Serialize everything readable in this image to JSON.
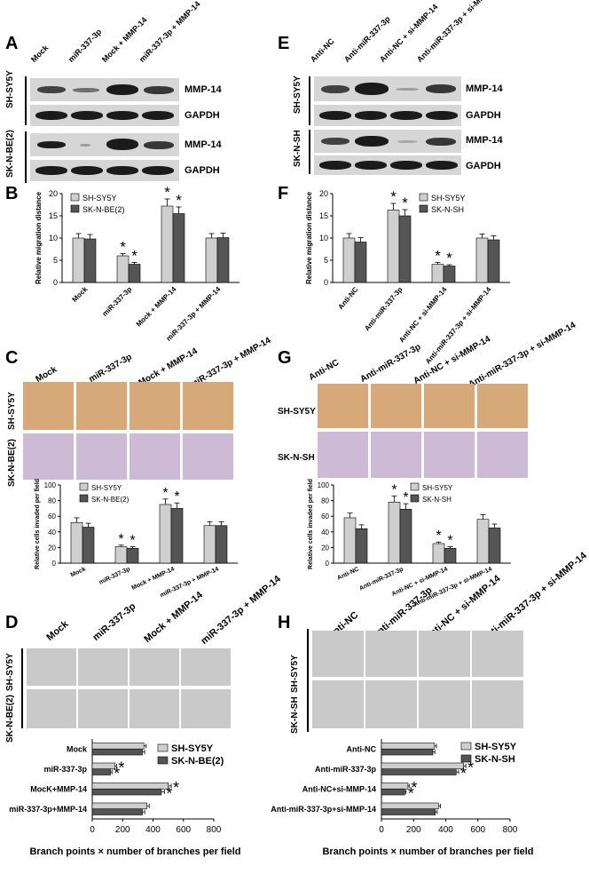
{
  "panel_letters": [
    "A",
    "B",
    "C",
    "D",
    "E",
    "F",
    "G",
    "H"
  ],
  "left": {
    "conditions": [
      "Mock",
      "miR-337-3p",
      "Mock + MMP-14",
      "miR-337-3p + MMP-14"
    ],
    "cell_lines": [
      "SH-SY5Y",
      "SK-N-BE(2)"
    ],
    "blot_labels": [
      "MMP-14",
      "GAPDH",
      "MMP-14",
      "GAPDH"
    ],
    "legend": [
      "SH-SY5Y",
      "SK-N-BE(2)"
    ],
    "d_rows": [
      "Mock",
      "miR-337-3p",
      "MocK+MMP-14",
      "miR-337-3p+MMP-14"
    ]
  },
  "right": {
    "conditions": [
      "Anti-NC",
      "Anti-miR-337-3p",
      "Anti-NC + si-MMP-14",
      "Anti-miR-337-3p + si-MMP-14"
    ],
    "cell_lines": [
      "SH-SY5Y",
      "SK-N-SH"
    ],
    "blot_labels": [
      "MMP-14",
      "GAPDH",
      "MMP-14",
      "GAPDH"
    ],
    "legend": [
      "SH-SY5Y",
      "SK-N-SH"
    ],
    "h_rows": [
      "Anti-NC",
      "Anti-miR-337-3p",
      "Anti-NC+si-MMP-14",
      "Anti-miR-337-3p+si-MMP-14"
    ]
  },
  "axes": {
    "migration": "Relative migration distance",
    "invasion": "Relative cells invaded per field",
    "branch": "Branch points × number of branches per field"
  },
  "chart_data": [
    {
      "panel": "B",
      "type": "bar",
      "ylabel": "Relative migration distance",
      "ylim": [
        0,
        20
      ],
      "yticks": [
        0,
        5,
        10,
        15,
        20
      ],
      "categories": [
        "Mock",
        "miR-337-3p",
        "Mock + MMP-14",
        "miR-337-3p + MMP-14"
      ],
      "series": [
        {
          "name": "SH-SY5Y",
          "values": [
            10,
            6,
            17.2,
            10
          ],
          "err": [
            1,
            0.5,
            1.6,
            1
          ]
        },
        {
          "name": "SK-N-BE(2)",
          "values": [
            9.8,
            4.1,
            15.5,
            10.1
          ],
          "err": [
            1,
            0.4,
            1.5,
            1
          ]
        }
      ],
      "significant": [
        false,
        true,
        true,
        false
      ]
    },
    {
      "panel": "F",
      "type": "bar",
      "ylabel": "Relative migration distance",
      "ylim": [
        0,
        20
      ],
      "yticks": [
        0,
        5,
        10,
        15,
        20
      ],
      "categories": [
        "Anti-NC",
        "Anti-miR-337-3p",
        "Anti-NC + si-MMP-14",
        "Anti-miR-337-3p + si-MMP-14"
      ],
      "series": [
        {
          "name": "SH-SY5Y",
          "values": [
            10,
            16.3,
            4.1,
            10
          ],
          "err": [
            1,
            1.5,
            0.4,
            0.9
          ]
        },
        {
          "name": "SK-N-SH",
          "values": [
            9.1,
            15,
            3.7,
            9.6
          ],
          "err": [
            1,
            1.4,
            0.3,
            0.9
          ]
        }
      ],
      "significant": [
        false,
        true,
        true,
        false
      ]
    },
    {
      "panel": "C",
      "type": "bar",
      "ylabel": "Relative cells invaded per field",
      "ylim": [
        0,
        100
      ],
      "yticks": [
        0,
        20,
        40,
        60,
        80,
        100
      ],
      "categories": [
        "Mock",
        "miR-337-3p",
        "Mock + MMP-14",
        "miR-337-3p + MMP-14"
      ],
      "series": [
        {
          "name": "SH-SY5Y",
          "values": [
            52,
            21,
            75,
            48
          ],
          "err": [
            6,
            2,
            7,
            5
          ]
        },
        {
          "name": "SK-N-BE(2)",
          "values": [
            46,
            19,
            70,
            48
          ],
          "err": [
            5,
            2,
            7,
            5
          ]
        }
      ],
      "significant": [
        false,
        true,
        true,
        false
      ]
    },
    {
      "panel": "G",
      "type": "bar",
      "ylabel": "Relative cells invaded per field",
      "ylim": [
        0,
        100
      ],
      "yticks": [
        0,
        20,
        40,
        60,
        80,
        100
      ],
      "categories": [
        "Anti-NC",
        "Anti-miR-337-3p",
        "Anti-NC + si-MMP-14",
        "Anti-miR-337-3p + si-MMP-14"
      ],
      "series": [
        {
          "name": "SH-SY5Y",
          "values": [
            58,
            78,
            25,
            56
          ],
          "err": [
            6,
            8,
            2,
            6
          ]
        },
        {
          "name": "SK-N-SH",
          "values": [
            44,
            69,
            19,
            45
          ],
          "err": [
            5,
            7,
            2,
            5
          ]
        }
      ],
      "significant": [
        false,
        true,
        true,
        false
      ]
    },
    {
      "panel": "D",
      "type": "bar",
      "orientation": "horizontal",
      "xlabel": "Branch points × number of branches per field",
      "xlim": [
        0,
        800
      ],
      "xticks": [
        0,
        200,
        400,
        600,
        800
      ],
      "categories": [
        "Mock",
        "miR-337-3p",
        "MocK+MMP-14",
        "miR-337-3p+MMP-14"
      ],
      "series": [
        {
          "name": "SH-SY5Y",
          "values": [
            340,
            150,
            500,
            360
          ],
          "err": [
            15,
            10,
            20,
            15
          ]
        },
        {
          "name": "SK-N-BE(2)",
          "values": [
            330,
            120,
            455,
            330
          ],
          "err": [
            15,
            10,
            20,
            15
          ]
        }
      ],
      "significant": [
        false,
        true,
        true,
        false
      ]
    },
    {
      "panel": "H",
      "type": "bar",
      "orientation": "horizontal",
      "xlabel": "Branch points × number of branches per field",
      "xlim": [
        0,
        800
      ],
      "xticks": [
        0,
        200,
        400,
        600,
        800
      ],
      "categories": [
        "Anti-NC",
        "Anti-miR-337-3p",
        "Anti-NC+si-MMP-14",
        "Anti-miR-337-3p+si-MMP-14"
      ],
      "series": [
        {
          "name": "SH-SY5Y",
          "values": [
            330,
            510,
            165,
            355
          ],
          "err": [
            12,
            15,
            8,
            12
          ]
        },
        {
          "name": "SK-N-SH",
          "values": [
            320,
            465,
            145,
            335
          ],
          "err": [
            12,
            15,
            8,
            12
          ]
        }
      ],
      "significant": [
        false,
        true,
        true,
        false
      ]
    }
  ],
  "colors": {
    "series1": "#cfcfcf",
    "series2": "#555555",
    "star": "#000000"
  },
  "significance_marker": "*"
}
